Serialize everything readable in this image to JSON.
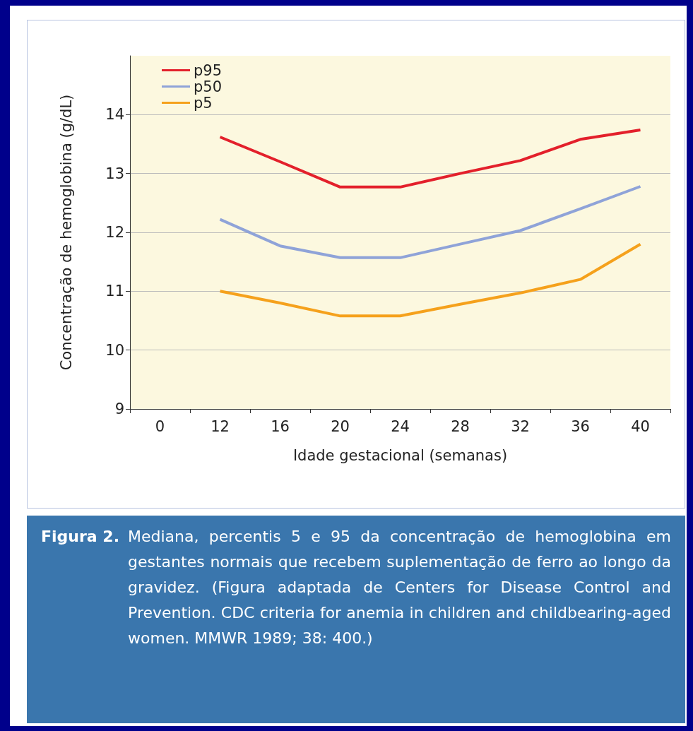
{
  "chart_data": {
    "type": "line",
    "xlabel": "Idade gestacional (semanas)",
    "ylabel": "Concentração de hemoglobina (g/dL)",
    "categories": [
      "0",
      "12",
      "16",
      "20",
      "24",
      "28",
      "32",
      "36",
      "40"
    ],
    "series": [
      {
        "name": "p95",
        "color": "#e3202b",
        "values": [
          null,
          13.62,
          13.2,
          12.77,
          12.77,
          13.0,
          13.22,
          13.58,
          13.74
        ]
      },
      {
        "name": "p50",
        "color": "#8fa3d8",
        "values": [
          null,
          12.22,
          11.77,
          11.57,
          11.57,
          11.8,
          12.03,
          12.4,
          12.78
        ]
      },
      {
        "name": "p5",
        "color": "#f5a11c",
        "values": [
          null,
          11.0,
          10.8,
          10.58,
          10.58,
          10.78,
          10.97,
          11.2,
          11.8
        ]
      }
    ],
    "ylim": [
      9,
      15
    ],
    "yticks": [
      9,
      10,
      11,
      12,
      13,
      14
    ],
    "grid": "y",
    "legend": "top left",
    "marker": "none",
    "line_style": "solid",
    "annotations": [
      "Figura 2.",
      "Mediana, percentis 5 e 95 da concentração de hemoglobina em gestantes normais que recebem suplementação de ferro ao longo da gravidez. (Figura adaptada de Centers for Disease Control and Prevention. CDC criteria for anemia in children and childbearing-aged women. MMWR 1989; 38: 400.)"
    ]
  }
}
